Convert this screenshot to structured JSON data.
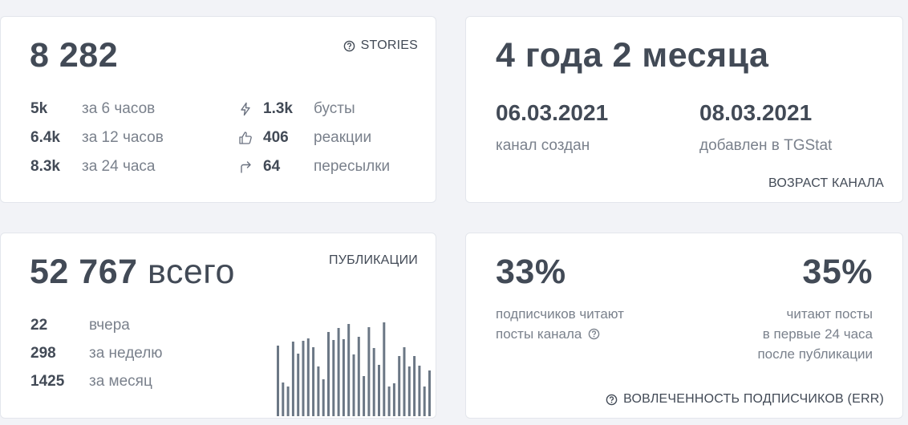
{
  "stories": {
    "total": "8 282",
    "label": "STORIES",
    "views": [
      {
        "value": "5k",
        "label": "за 6 часов"
      },
      {
        "value": "6.4k",
        "label": "за 12 часов"
      },
      {
        "value": "8.3k",
        "label": "за 24 часа"
      }
    ],
    "stats": [
      {
        "icon": "lightning-icon",
        "value": "1.3k",
        "label": "бусты"
      },
      {
        "icon": "thumbs-up-icon",
        "value": "406",
        "label": "реакции"
      },
      {
        "icon": "forward-arrow-icon",
        "value": "64",
        "label": "пересылки"
      }
    ]
  },
  "age": {
    "title": "4 года 2 месяца",
    "created_date": "06.03.2021",
    "created_label": "канал создан",
    "added_date": "08.03.2021",
    "added_label": "добавлен в TGStat",
    "label": "ВОЗРАСТ КАНАЛА"
  },
  "publications": {
    "total": "52 767",
    "total_suffix": "всего",
    "label": "ПУБЛИКАЦИИ",
    "rows": [
      {
        "value": "22",
        "label": "вчера"
      },
      {
        "value": "298",
        "label": "за неделю"
      },
      {
        "value": "1425",
        "label": "за месяц"
      }
    ],
    "bar_values": [
      88,
      42,
      37,
      93,
      78,
      94,
      97,
      86,
      62,
      46,
      105,
      95,
      110,
      96,
      115,
      77,
      99,
      50,
      111,
      85,
      64,
      117,
      37,
      41,
      75,
      86,
      62,
      75,
      63,
      37,
      57
    ]
  },
  "engagement": {
    "left_percent": "33%",
    "left_desc_line1": "подписчиков читают",
    "left_desc_line2": "посты канала",
    "right_percent": "35%",
    "right_desc_line1": "читают посты",
    "right_desc_line2": "в первые 24 часа",
    "right_desc_line3": "после публикации",
    "label": "ВОВЛЕЧЕННОСТЬ ПОДПИСЧИКОВ (ERR)"
  },
  "colors": {
    "bar": "#6b7785",
    "text_dark": "#424a56",
    "text_muted": "#7a818c"
  }
}
